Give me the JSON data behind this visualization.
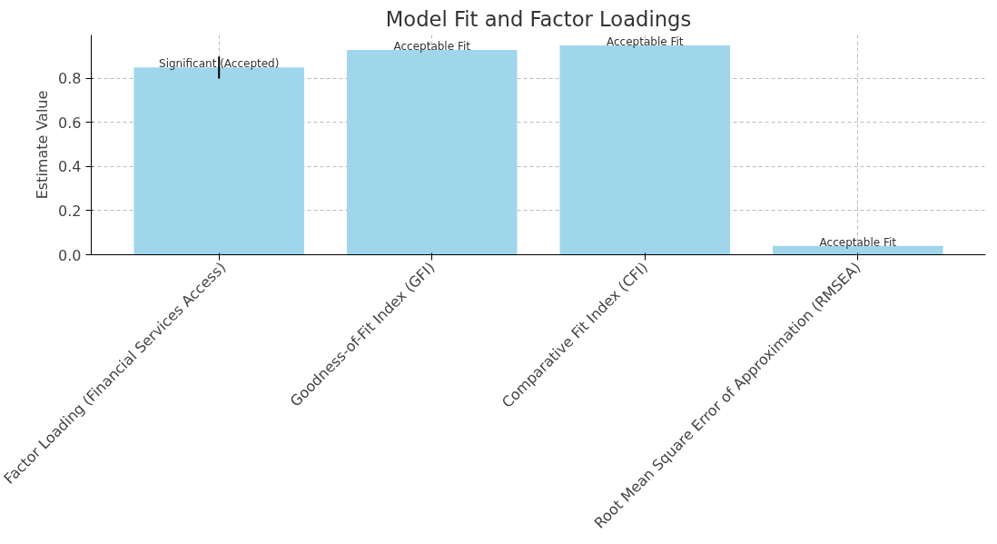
{
  "chart_data": {
    "type": "bar",
    "title": "Model Fit and Factor Loadings",
    "ylabel": "Estimate Value",
    "categories": [
      "Factor Loading (Financial Services Access)",
      "Goodness-of-Fit Index (GFI)",
      "Comparative Fit Index (CFI)",
      "Root Mean Square Error of Approximation (RMSEA)"
    ],
    "values": [
      0.85,
      0.93,
      0.95,
      0.04
    ],
    "errors": [
      0.05,
      null,
      null,
      null
    ],
    "color": "#a0d6ec",
    "ylim": [
      0,
      0.9975
    ],
    "yticks": [
      {
        "value": 0,
        "label": "0.0"
      },
      0.2,
      0.4,
      0.6,
      0.8
    ],
    "grid": true,
    "annotations": [
      {
        "text": "Significant (Accepted)",
        "x": "Factor Loading (Financial Services Access)",
        "y": 0.85
      },
      {
        "text": "Acceptable Fit",
        "x": "Goodness-of-Fit Index (GFI)",
        "y": 0.93
      },
      {
        "text": "Acceptable Fit",
        "x": "Comparative Fit Index (CFI)",
        "y": 0.95
      },
      {
        "text": "Acceptable Fit",
        "x": "Root Mean Square Error of Approximation (RMSEA)",
        "y": 0.04
      }
    ]
  }
}
